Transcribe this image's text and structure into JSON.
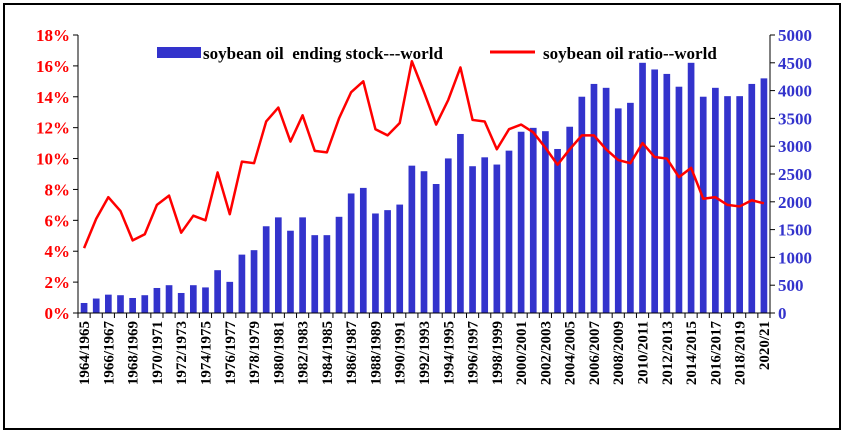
{
  "chart_data": {
    "type": "bar+line",
    "title": "",
    "categories": [
      "1964/1965",
      "1965/1966",
      "1966/1967",
      "1967/1968",
      "1968/1969",
      "1969/1970",
      "1970/1971",
      "1971/1972",
      "1972/1973",
      "1973/1974",
      "1974/1975",
      "1975/1976",
      "1976/1977",
      "1977/1978",
      "1978/1979",
      "1979/1980",
      "1980/1981",
      "1981/1982",
      "1982/1983",
      "1983/1984",
      "1984/1985",
      "1985/1986",
      "1986/1987",
      "1987/1988",
      "1988/1989",
      "1989/1990",
      "1990/1991",
      "1991/1992",
      "1992/1993",
      "1993/1994",
      "1994/1995",
      "1995/1996",
      "1996/1997",
      "1997/1998",
      "1998/1999",
      "1999/2000",
      "2000/2001",
      "2001/2002",
      "2002/2003",
      "2003/2004",
      "2004/2005",
      "2005/2006",
      "2006/2007",
      "2007/2008",
      "2008/2009",
      "2009/2010",
      "2010/2011",
      "2011/2012",
      "2012/2013",
      "2013/2014",
      "2014/2015",
      "2015/2016",
      "2016/2017",
      "2017/2018",
      "2018/2019",
      "2019/2020",
      "2020/21"
    ],
    "x_tick_labels": [
      "1964/1965",
      "1966/1967",
      "1968/1969",
      "1970/1971",
      "1972/1973",
      "1974/1975",
      "1976/1977",
      "1978/1979",
      "1980/1981",
      "1982/1983",
      "1984/1985",
      "1986/1987",
      "1988/1989",
      "1990/1991",
      "1992/1993",
      "1994/1995",
      "1996/1997",
      "1998/1999",
      "2000/2001",
      "2002/2003",
      "2004/2005",
      "2006/2007",
      "2008/2009",
      "2010/2011",
      "2012/2013",
      "2014/2015",
      "2016/2017",
      "2018/2019",
      "2020/21"
    ],
    "series": [
      {
        "name": "soybean oil  ending stock---world",
        "kind": "bar",
        "axis": "right",
        "color": "#3333cc",
        "values": [
          180,
          260,
          330,
          320,
          270,
          320,
          450,
          500,
          360,
          500,
          460,
          770,
          560,
          1050,
          1130,
          1560,
          1720,
          1480,
          1720,
          1400,
          1400,
          1730,
          2150,
          2250,
          1790,
          1850,
          1950,
          2650,
          2550,
          2320,
          2780,
          3220,
          2640,
          2800,
          2670,
          2920,
          3260,
          3330,
          3270,
          2950,
          3350,
          3890,
          4120,
          4050,
          3680,
          3780,
          4500,
          4380,
          4300,
          4070,
          4500,
          3890,
          4050,
          3900,
          3900,
          4120,
          4220
        ]
      },
      {
        "name": "soybean oil ratio--world",
        "kind": "line",
        "axis": "left",
        "color": "#ff0000",
        "values": [
          4.2,
          6.1,
          7.5,
          6.6,
          4.7,
          5.1,
          7.0,
          7.6,
          5.2,
          6.3,
          6.0,
          9.1,
          6.4,
          9.8,
          9.7,
          12.4,
          13.3,
          11.1,
          12.8,
          10.5,
          10.4,
          12.6,
          14.3,
          15.0,
          11.9,
          11.5,
          12.3,
          16.3,
          14.3,
          12.2,
          13.8,
          15.9,
          12.5,
          12.4,
          10.6,
          11.9,
          12.2,
          11.7,
          10.7,
          9.6,
          10.6,
          11.5,
          11.5,
          10.6,
          9.9,
          9.7,
          11.0,
          10.1,
          10.0,
          8.8,
          9.4,
          7.4,
          7.5,
          7.0,
          6.9,
          7.3,
          7.1
        ]
      }
    ],
    "left_axis": {
      "min": 0,
      "max": 18,
      "step": 2,
      "tick_labels": [
        "0%",
        "2%",
        "4%",
        "6%",
        "8%",
        "10%",
        "12%",
        "14%",
        "16%",
        "18%"
      ]
    },
    "right_axis": {
      "min": 0,
      "max": 5000,
      "step": 500,
      "tick_labels": [
        "0",
        "500",
        "1000",
        "1500",
        "2000",
        "2500",
        "3000",
        "3500",
        "4000",
        "4500",
        "5000"
      ]
    },
    "legend_position": "top",
    "grid": false,
    "colors": {
      "left_axis": "#ff0000",
      "right_axis": "#3333cc",
      "axis_line": "#000000"
    }
  }
}
